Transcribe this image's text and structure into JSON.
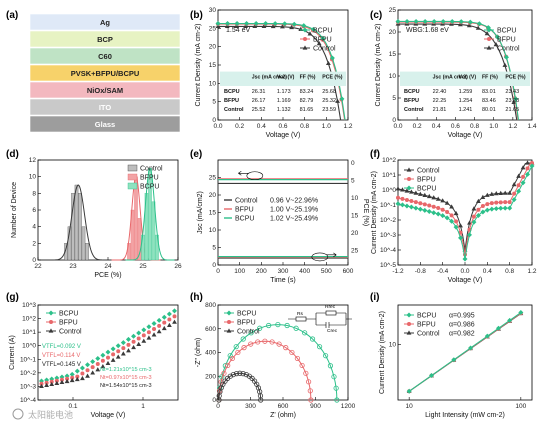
{
  "panels": {
    "a": {
      "label": "(a)",
      "layers": [
        {
          "text": "Ag",
          "color": "#dfe9f7"
        },
        {
          "text": "BCP",
          "color": "#e7f3c3"
        },
        {
          "text": "C60",
          "color": "#bfe3c5"
        },
        {
          "text": "PVSK+BFPU/BCPU",
          "color": "#f7d26a"
        },
        {
          "text": "NiOx/SAM",
          "color": "#f3b8bf"
        },
        {
          "text": "ITO",
          "color": "#c9c9c9"
        },
        {
          "text": "Glass",
          "color": "#9d9d9d"
        }
      ]
    },
    "b": {
      "label": "(b)",
      "annotation": "1.54 eV",
      "table_header": [
        "",
        "Jsc (mA cm-2)",
        "Voc (V)",
        "FF (%)",
        "PCE (%)"
      ],
      "table_rows": [
        [
          "BCPU",
          "26.31",
          "1.173",
          "83.24",
          "25.68"
        ],
        [
          "BFPU",
          "26.17",
          "1.169",
          "82.79",
          "25.32"
        ],
        [
          "Control",
          "25.52",
          "1.132",
          "81.65",
          "23.59"
        ]
      ]
    },
    "c": {
      "label": "(c)",
      "annotation": "WBG:1.68 eV",
      "table_header": [
        "",
        "Jsc (mA cm-2)",
        "Voc (V)",
        "FF (%)",
        "PCE (%)"
      ],
      "table_rows": [
        [
          "BCPU",
          "22.40",
          "1.259",
          "83.01",
          "23.43"
        ],
        [
          "BFPU",
          "22.25",
          "1.254",
          "83.46",
          "23.28"
        ],
        [
          "Control",
          "21.81",
          "1.241",
          "80.01",
          "21.65"
        ]
      ]
    },
    "d": {
      "label": "(d)"
    },
    "e": {
      "label": "(e)"
    },
    "f": {
      "label": "(f)"
    },
    "g": {
      "label": "(g)"
    },
    "h": {
      "label": "(h)",
      "circuit": {
        "rs": "Rs",
        "rrec": "Rrec",
        "crec": "Crec"
      }
    },
    "i": {
      "label": "(i)"
    }
  },
  "colors": {
    "BCPU": "#2cc08a",
    "BFPU": "#e8676a",
    "Control": "#3a3a3a"
  },
  "watermark": "太阳能电池",
  "chart_data": [
    {
      "panel": "b",
      "type": "line",
      "xlabel": "Voltage (V)",
      "ylabel": "Current Density (mA cm-2)",
      "xlim": [
        0,
        1.2
      ],
      "ylim": [
        0,
        30
      ],
      "xticks": [
        "0.0",
        "0.2",
        "0.4",
        "0.6",
        "0.8",
        "1.0",
        "1.2"
      ],
      "yticks": [
        "0",
        "5",
        "10",
        "15",
        "20",
        "25",
        "30"
      ],
      "legend": "top-right",
      "series": [
        {
          "name": "BCPU",
          "jsc": 26.31,
          "voc": 1.173,
          "ff": 83.24
        },
        {
          "name": "BFPU",
          "jsc": 26.17,
          "voc": 1.169,
          "ff": 82.79
        },
        {
          "name": "Control",
          "jsc": 25.52,
          "voc": 1.132,
          "ff": 81.65
        }
      ]
    },
    {
      "panel": "c",
      "type": "line",
      "xlabel": "Voltage (V)",
      "ylabel": "Current Density (mA cm-2)",
      "xlim": [
        0,
        1.4
      ],
      "ylim": [
        0,
        25
      ],
      "xticks": [
        "0.0",
        "0.2",
        "0.4",
        "0.6",
        "0.8",
        "1.0",
        "1.2",
        "1.4"
      ],
      "yticks": [
        "0",
        "5",
        "10",
        "15",
        "20",
        "25"
      ],
      "legend": "top-right",
      "series": [
        {
          "name": "BCPU",
          "jsc": 22.4,
          "voc": 1.259,
          "ff": 83.01
        },
        {
          "name": "BFPU",
          "jsc": 22.25,
          "voc": 1.254,
          "ff": 83.46
        },
        {
          "name": "Control",
          "jsc": 21.81,
          "voc": 1.241,
          "ff": 80.01
        }
      ]
    },
    {
      "panel": "d",
      "type": "bar",
      "xlabel": "PCE (%)",
      "ylabel": "Number of Device",
      "xlim": [
        22,
        26
      ],
      "ylim": [
        0,
        12
      ],
      "xticks": [
        "22",
        "23",
        "24",
        "25",
        "26"
      ],
      "yticks": [
        "0",
        "2",
        "4",
        "6",
        "8",
        "10",
        "12"
      ],
      "legend": "top-left",
      "series": [
        {
          "name": "Control",
          "bins": [
            22.8,
            22.9,
            23.0,
            23.1,
            23.2,
            23.3,
            23.4
          ],
          "counts": [
            2,
            4,
            8,
            9,
            8,
            4,
            2
          ],
          "center": 23.15,
          "sigma": 0.18,
          "amp": 9
        },
        {
          "name": "BFPU",
          "bins": [
            24.6,
            24.7,
            24.8,
            24.9,
            25.0
          ],
          "counts": [
            2,
            6,
            10,
            5,
            2
          ],
          "center": 24.8,
          "sigma": 0.12,
          "amp": 10
        },
        {
          "name": "BCPU",
          "bins": [
            25.0,
            25.1,
            25.2,
            25.3,
            25.4
          ],
          "counts": [
            3,
            8,
            11,
            7,
            3
          ],
          "center": 25.2,
          "sigma": 0.13,
          "amp": 11
        }
      ]
    },
    {
      "panel": "e",
      "type": "line",
      "xlabel": "Time (s)",
      "ylabel": "Jsc (mA/cm2)",
      "ylabel_right": "PCE (%)",
      "xlim": [
        0,
        600
      ],
      "ylim": [
        0,
        30
      ],
      "xticks": [
        "0",
        "100",
        "200",
        "300",
        "400",
        "500",
        "600"
      ],
      "yticks": [
        "0",
        "5",
        "10",
        "15",
        "20",
        "25"
      ],
      "yticks_right": [
        "0",
        "5",
        "10",
        "15",
        "20",
        "25"
      ],
      "legend": "center-left",
      "series": [
        {
          "name": "Control",
          "label": "0.96 V~22.96%",
          "jsc": 23.9,
          "pce": 22.96
        },
        {
          "name": "BFPU",
          "label": "1.00 V~25.19%",
          "jsc": 25.2,
          "pce": 25.19
        },
        {
          "name": "BCPU",
          "label": "1.02 V~25.49%",
          "jsc": 25.0,
          "pce": 25.49
        }
      ]
    },
    {
      "panel": "f",
      "type": "line",
      "xlabel": "Voltage (V)",
      "ylabel": "Current Density (mA cm-2)",
      "xlim": [
        -1.2,
        1.2
      ],
      "ylim_log10": [
        -5,
        2
      ],
      "log_y": true,
      "xticks": [
        "-1.2",
        "-0.8",
        "-0.4",
        "0.0",
        "0.4",
        "0.8",
        "1.2"
      ],
      "yticks": [
        "10^-5",
        "10^-4",
        "10^-3",
        "10^-2",
        "10^-1",
        "10^0",
        "10^1",
        "10^2"
      ],
      "legend": "top-left",
      "series": [
        {
          "name": "Control",
          "leak": -1.0,
          "dip": -4.0
        },
        {
          "name": "BFPU",
          "leak": -1.6,
          "dip": -4.3
        },
        {
          "name": "BCPU",
          "leak": -2.0,
          "dip": -4.6
        }
      ]
    },
    {
      "panel": "g",
      "type": "scatter",
      "xlabel": "Voltage (V)",
      "ylabel": "Current (A)",
      "xlim_log10": [
        -1.5,
        0.5
      ],
      "ylim_log10": [
        -4,
        3
      ],
      "log_x": true,
      "log_y": true,
      "xticks": [
        "0.1",
        "1"
      ],
      "yticks": [
        "10^-4",
        "10^-3",
        "10^-2",
        "10^-1",
        "10^0",
        "10^1",
        "10^2",
        "10^3"
      ],
      "legend": "top-left",
      "annotations": [
        "VTFL=0.092 V",
        "VTFL=0.114 V",
        "VTFL=0.145 V",
        "Nt=1.21x10^15 cm-3",
        "Nt=0.97x10^15 cm-3",
        "Nt=1.54x10^15 cm-3"
      ],
      "series": [
        {
          "name": "BCPU",
          "vtfl": 0.092,
          "nt": 1210000000000000.0
        },
        {
          "name": "BFPU",
          "vtfl": 0.114,
          "nt": 970000000000000.0
        },
        {
          "name": "Control",
          "vtfl": 0.145,
          "nt": 1540000000000000.0
        }
      ]
    },
    {
      "panel": "h",
      "type": "scatter",
      "xlabel": "Z' (ohm)",
      "ylabel": "-Z'' (ohm)",
      "xlim": [
        0,
        1400
      ],
      "ylim": [
        0,
        800
      ],
      "xticks": [
        "0",
        "300",
        "600",
        "900",
        "1200"
      ],
      "yticks": [
        "0",
        "200",
        "400",
        "600",
        "800"
      ],
      "legend": "top-left",
      "series": [
        {
          "name": "BCPU",
          "rs": 10,
          "rrec": 1270
        },
        {
          "name": "BFPU",
          "rs": 10,
          "rrec": 990
        },
        {
          "name": "Control",
          "rs": 10,
          "rrec": 450
        }
      ]
    },
    {
      "panel": "i",
      "type": "scatter",
      "xlabel": "Light Intensity (mW cm-2)",
      "ylabel": "Current Density (mA cm-2)",
      "xlim_log10": [
        0.9,
        2.1
      ],
      "ylim_log10": [
        0.3,
        1.5
      ],
      "log_x": true,
      "log_y": true,
      "xticks": [
        "10",
        "100"
      ],
      "yticks": [
        "10"
      ],
      "legend": "top-left",
      "series": [
        {
          "name": "BCPU",
          "alpha_label": "α=0.995",
          "alpha": 0.995
        },
        {
          "name": "BFPU",
          "alpha_label": "α=0.986",
          "alpha": 0.986
        },
        {
          "name": "Control",
          "alpha_label": "α=0.982",
          "alpha": 0.982
        }
      ]
    }
  ]
}
